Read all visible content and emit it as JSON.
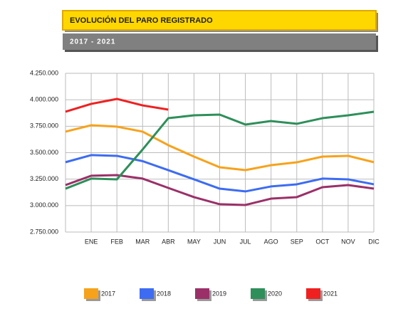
{
  "chart_data": {
    "type": "line",
    "title": "EVOLUCIÓN DEL PARO REGISTRADO",
    "subtitle": "2017 - 2021",
    "categories": [
      null,
      "ENE",
      "FEB",
      "MAR",
      "ABR",
      "MAY",
      "JUN",
      "JUL",
      "AGO",
      "SEP",
      "OCT",
      "NOV",
      "DIC"
    ],
    "ylim": [
      2750000,
      4250000
    ],
    "yticks": [
      {
        "value": 2750000,
        "label": "2.750.000"
      },
      {
        "value": 3000000,
        "label": "3.000.000"
      },
      {
        "value": 3250000,
        "label": "3.250.000"
      },
      {
        "value": 3500000,
        "label": "3.500.000"
      },
      {
        "value": 3750000,
        "label": "3.750.000"
      },
      {
        "value": 4000000,
        "label": "4.000.000"
      },
      {
        "value": 4250000,
        "label": "4.250.000"
      }
    ],
    "grid": true,
    "legend": "bottom",
    "series": [
      {
        "name": "2017",
        "color": "#f7a21b",
        "values": [
          3699000,
          3759000,
          3746000,
          3699000,
          3571000,
          3463000,
          3362000,
          3335000,
          3382000,
          3409000,
          3463000,
          3470000,
          3410000
        ]
      },
      {
        "name": "2018",
        "color": "#3d6cf2",
        "values": [
          3410000,
          3477000,
          3470000,
          3420000,
          3335000,
          3248000,
          3160000,
          3134000,
          3181000,
          3201000,
          3255000,
          3248000,
          3201000
        ]
      },
      {
        "name": "2019",
        "color": "#9b3068",
        "values": [
          3194000,
          3282000,
          3288000,
          3255000,
          3167000,
          3080000,
          3013000,
          3006000,
          3066000,
          3080000,
          3174000,
          3194000,
          3160000
        ]
      },
      {
        "name": "2020",
        "color": "#2e8f5a",
        "values": [
          3160000,
          3255000,
          3248000,
          3530000,
          3826000,
          3853000,
          3860000,
          3766000,
          3799000,
          3773000,
          3826000,
          3853000,
          3887000
        ]
      },
      {
        "name": "2021",
        "color": "#f02020",
        "values": [
          3887000,
          3961000,
          4008000,
          3947000,
          3907000,
          null,
          null,
          null,
          null,
          null,
          null,
          null,
          null
        ]
      }
    ]
  }
}
